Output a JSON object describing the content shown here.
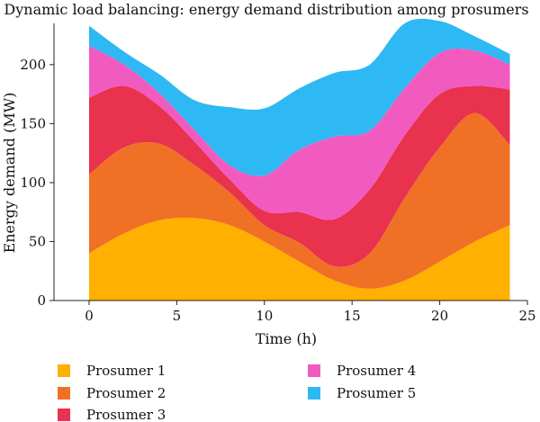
{
  "chart_data": {
    "type": "area",
    "stacked": true,
    "title": "Dynamic load balancing: energy demand distribution among prosumers",
    "xlabel": "Time (h)",
    "ylabel": "Energy demand (MW)",
    "xlim": [
      -2,
      25
    ],
    "ylim": [
      0,
      235
    ],
    "xticks": [
      0,
      5,
      10,
      15,
      20,
      25
    ],
    "yticks": [
      0,
      50,
      100,
      150,
      200
    ],
    "x": [
      0,
      2,
      4,
      6,
      8,
      10,
      12,
      14,
      16,
      18,
      20,
      22,
      24
    ],
    "series": [
      {
        "name": "Prosumer 1",
        "color": "#FFB000",
        "values": [
          40,
          57,
          68,
          70,
          64,
          50,
          33,
          17,
          10,
          17,
          33,
          50,
          64
        ]
      },
      {
        "name": "Prosumer 2",
        "color": "#F07025",
        "values": [
          67,
          73,
          65,
          45,
          28,
          14,
          16,
          12,
          30,
          70,
          97,
          109,
          68
        ]
      },
      {
        "name": "Prosumer 3",
        "color": "#E8324E",
        "values": [
          65,
          52,
          32,
          20,
          11,
          12,
          26,
          40,
          54,
          53,
          45,
          23,
          47
        ]
      },
      {
        "name": "Prosumer 4",
        "color": "#F15BC0",
        "values": [
          44,
          18,
          11,
          10,
          12,
          30,
          53,
          70,
          50,
          40,
          35,
          30,
          21
        ]
      },
      {
        "name": "Prosumer 5",
        "color": "#2EB8F4",
        "values": [
          17,
          11,
          16,
          25,
          49,
          57,
          52,
          54,
          56,
          55,
          27,
          12,
          9
        ]
      }
    ],
    "legend_position": "bottom",
    "grid": false
  }
}
